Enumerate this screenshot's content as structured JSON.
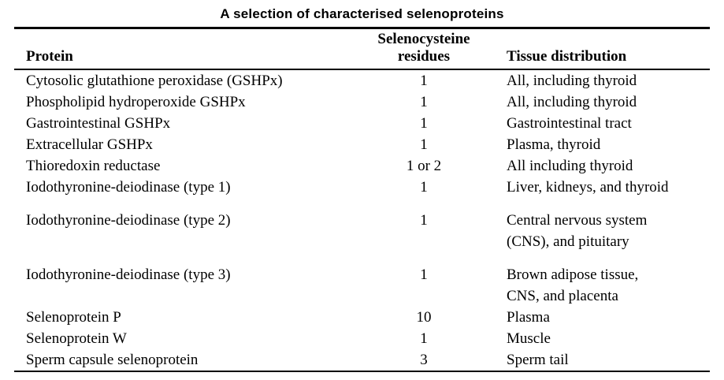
{
  "title": "A selection of characterised selenoproteins",
  "table": {
    "headers": {
      "protein": "Protein",
      "residues": "Selenocysteine\nresidues",
      "tissue": "Tissue distribution"
    },
    "rows": [
      {
        "protein": "Cytosolic glutathione peroxidase (GSHPx)",
        "residues": "1",
        "tissue": "All, including thyroid"
      },
      {
        "protein": "Phospholipid hydroperoxide GSHPx",
        "residues": "1",
        "tissue": "All, including thyroid"
      },
      {
        "protein": "Gastrointestinal GSHPx",
        "residues": "1",
        "tissue": "Gastrointestinal tract"
      },
      {
        "protein": "Extracellular GSHPx",
        "residues": "1",
        "tissue": "Plasma, thyroid"
      },
      {
        "protein": "Thioredoxin reductase",
        "residues": "1 or 2",
        "tissue": "All including thyroid"
      },
      {
        "protein": "Iodothyronine-deiodinase (type 1)",
        "residues": "1",
        "tissue": "Liver, kidneys, and thyroid"
      },
      {
        "protein": "Iodothyronine-deiodinase (type 2)",
        "residues": "1",
        "tissue": "Central nervous system\n(CNS), and pituitary"
      },
      {
        "protein": "Iodothyronine-deiodinase (type 3)",
        "residues": "1",
        "tissue": "Brown adipose tissue,\nCNS, and placenta"
      },
      {
        "protein": "Selenoprotein P",
        "residues": "10",
        "tissue": "Plasma"
      },
      {
        "protein": "Selenoprotein W",
        "residues": "1",
        "tissue": "Muscle"
      },
      {
        "protein": "Sperm capsule selenoprotein",
        "residues": "3",
        "tissue": "Sperm tail"
      }
    ]
  }
}
